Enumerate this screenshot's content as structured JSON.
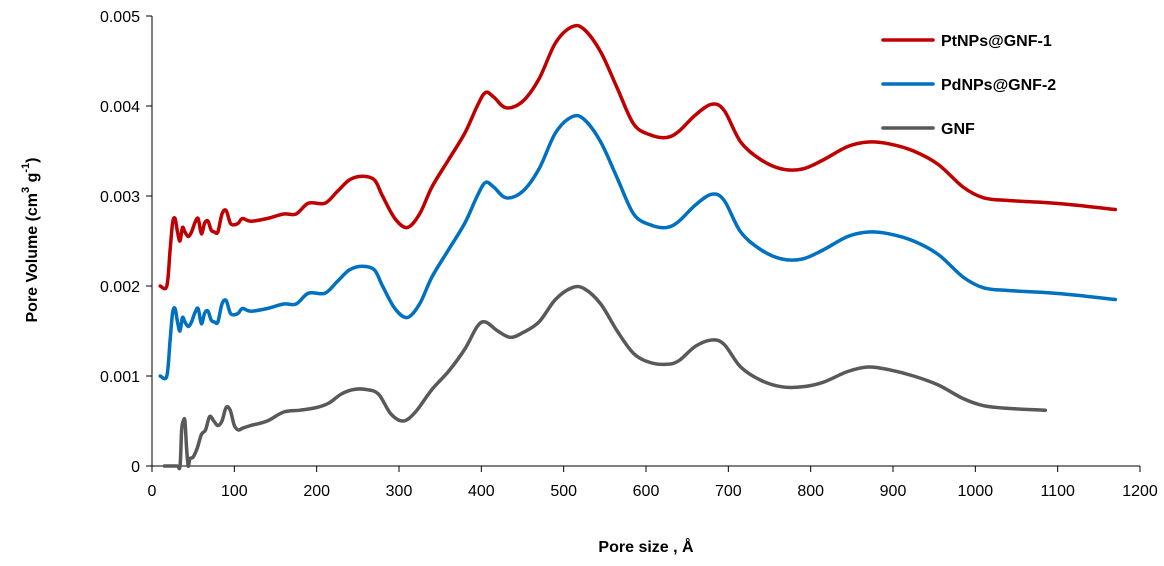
{
  "chart_data": {
    "type": "line",
    "title": "",
    "xlabel": "Pore size , Å",
    "ylabel_parts": [
      "Pore Volume (cm",
      "3",
      " g",
      "-1",
      ")"
    ],
    "xlim": [
      0,
      1200
    ],
    "ylim": [
      0,
      0.005
    ],
    "x_ticks": [
      0,
      100,
      200,
      300,
      400,
      500,
      600,
      700,
      800,
      900,
      1000,
      1100,
      1200
    ],
    "y_ticks": [
      0,
      0.001,
      0.002,
      0.003,
      0.004,
      0.005
    ],
    "y_tick_labels": [
      "0",
      "0.001",
      "0.002",
      "0.003",
      "0.004",
      "0.005"
    ],
    "grid": false,
    "legend_position": "top-right",
    "series": [
      {
        "name": "PtNPs@GNF-1",
        "color": "#C00000",
        "points": [
          [
            10,
            0.002
          ],
          [
            18,
            0.002
          ],
          [
            22,
            0.0024
          ],
          [
            25,
            0.0027
          ],
          [
            28,
            0.00275
          ],
          [
            31,
            0.0026
          ],
          [
            34,
            0.0025
          ],
          [
            37,
            0.00265
          ],
          [
            40,
            0.0026
          ],
          [
            44,
            0.00255
          ],
          [
            48,
            0.0026
          ],
          [
            52,
            0.0027
          ],
          [
            56,
            0.00275
          ],
          [
            60,
            0.00258
          ],
          [
            64,
            0.0027
          ],
          [
            68,
            0.00272
          ],
          [
            72,
            0.00262
          ],
          [
            76,
            0.0026
          ],
          [
            80,
            0.0026
          ],
          [
            85,
            0.0028
          ],
          [
            90,
            0.00284
          ],
          [
            95,
            0.0027
          ],
          [
            100,
            0.00268
          ],
          [
            105,
            0.0027
          ],
          [
            110,
            0.00275
          ],
          [
            120,
            0.00272
          ],
          [
            140,
            0.00275
          ],
          [
            160,
            0.0028
          ],
          [
            175,
            0.0028
          ],
          [
            190,
            0.00292
          ],
          [
            210,
            0.00292
          ],
          [
            225,
            0.00305
          ],
          [
            240,
            0.00318
          ],
          [
            255,
            0.00322
          ],
          [
            270,
            0.00318
          ],
          [
            280,
            0.003
          ],
          [
            295,
            0.00275
          ],
          [
            310,
            0.00265
          ],
          [
            325,
            0.0028
          ],
          [
            340,
            0.0031
          ],
          [
            360,
            0.0034
          ],
          [
            380,
            0.0037
          ],
          [
            395,
            0.004
          ],
          [
            405,
            0.00415
          ],
          [
            415,
            0.0041
          ],
          [
            430,
            0.00398
          ],
          [
            450,
            0.00405
          ],
          [
            470,
            0.0043
          ],
          [
            490,
            0.0047
          ],
          [
            510,
            0.00488
          ],
          [
            525,
            0.00485
          ],
          [
            545,
            0.0046
          ],
          [
            565,
            0.0042
          ],
          [
            585,
            0.0038
          ],
          [
            605,
            0.00368
          ],
          [
            625,
            0.00365
          ],
          [
            640,
            0.00372
          ],
          [
            660,
            0.0039
          ],
          [
            680,
            0.00402
          ],
          [
            695,
            0.00395
          ],
          [
            715,
            0.0036
          ],
          [
            740,
            0.0034
          ],
          [
            765,
            0.0033
          ],
          [
            790,
            0.0033
          ],
          [
            815,
            0.0034
          ],
          [
            845,
            0.00355
          ],
          [
            870,
            0.0036
          ],
          [
            895,
            0.00358
          ],
          [
            925,
            0.0035
          ],
          [
            955,
            0.00335
          ],
          [
            985,
            0.0031
          ],
          [
            1010,
            0.00298
          ],
          [
            1040,
            0.00295
          ],
          [
            1080,
            0.00293
          ],
          [
            1120,
            0.0029
          ],
          [
            1170,
            0.00285
          ]
        ]
      },
      {
        "name": "PdNPs@GNF-2",
        "color": "#0070C0",
        "points": [
          [
            10,
            0.001
          ],
          [
            18,
            0.001
          ],
          [
            22,
            0.0014
          ],
          [
            25,
            0.0017
          ],
          [
            28,
            0.00175
          ],
          [
            31,
            0.0016
          ],
          [
            34,
            0.0015
          ],
          [
            37,
            0.00165
          ],
          [
            40,
            0.0016
          ],
          [
            44,
            0.00155
          ],
          [
            48,
            0.0016
          ],
          [
            52,
            0.0017
          ],
          [
            56,
            0.00175
          ],
          [
            60,
            0.00158
          ],
          [
            64,
            0.0017
          ],
          [
            68,
            0.00172
          ],
          [
            72,
            0.00162
          ],
          [
            76,
            0.0016
          ],
          [
            80,
            0.0016
          ],
          [
            85,
            0.0018
          ],
          [
            90,
            0.00184
          ],
          [
            95,
            0.0017
          ],
          [
            100,
            0.00168
          ],
          [
            105,
            0.0017
          ],
          [
            110,
            0.00175
          ],
          [
            120,
            0.00172
          ],
          [
            140,
            0.00175
          ],
          [
            160,
            0.0018
          ],
          [
            175,
            0.0018
          ],
          [
            190,
            0.00192
          ],
          [
            210,
            0.00192
          ],
          [
            225,
            0.00205
          ],
          [
            240,
            0.00218
          ],
          [
            255,
            0.00222
          ],
          [
            270,
            0.00218
          ],
          [
            280,
            0.002
          ],
          [
            295,
            0.00175
          ],
          [
            310,
            0.00165
          ],
          [
            325,
            0.0018
          ],
          [
            340,
            0.0021
          ],
          [
            360,
            0.0024
          ],
          [
            380,
            0.0027
          ],
          [
            395,
            0.003
          ],
          [
            405,
            0.00315
          ],
          [
            415,
            0.0031
          ],
          [
            430,
            0.00298
          ],
          [
            450,
            0.00305
          ],
          [
            470,
            0.0033
          ],
          [
            490,
            0.0037
          ],
          [
            510,
            0.00388
          ],
          [
            525,
            0.00385
          ],
          [
            545,
            0.0036
          ],
          [
            565,
            0.0032
          ],
          [
            585,
            0.0028
          ],
          [
            605,
            0.00268
          ],
          [
            625,
            0.00265
          ],
          [
            640,
            0.00272
          ],
          [
            660,
            0.0029
          ],
          [
            680,
            0.00302
          ],
          [
            695,
            0.00295
          ],
          [
            715,
            0.0026
          ],
          [
            740,
            0.0024
          ],
          [
            765,
            0.0023
          ],
          [
            790,
            0.0023
          ],
          [
            815,
            0.0024
          ],
          [
            845,
            0.00255
          ],
          [
            870,
            0.0026
          ],
          [
            895,
            0.00258
          ],
          [
            925,
            0.0025
          ],
          [
            955,
            0.00235
          ],
          [
            985,
            0.0021
          ],
          [
            1010,
            0.00198
          ],
          [
            1040,
            0.00195
          ],
          [
            1080,
            0.00193
          ],
          [
            1120,
            0.0019
          ],
          [
            1170,
            0.00185
          ]
        ]
      },
      {
        "name": "GNF",
        "color": "#595959",
        "points": [
          [
            15,
            0
          ],
          [
            30,
            0
          ],
          [
            34,
            0
          ],
          [
            36,
            0.0004
          ],
          [
            38,
            0.0005
          ],
          [
            40,
            0.0005
          ],
          [
            42,
            0.0002
          ],
          [
            44,
            0
          ],
          [
            46,
            8e-05
          ],
          [
            50,
            0.0001
          ],
          [
            55,
            0.0002
          ],
          [
            60,
            0.00035
          ],
          [
            65,
            0.0004
          ],
          [
            70,
            0.00055
          ],
          [
            75,
            0.0005
          ],
          [
            80,
            0.00045
          ],
          [
            85,
            0.0005
          ],
          [
            90,
            0.00065
          ],
          [
            95,
            0.00062
          ],
          [
            100,
            0.00045
          ],
          [
            105,
            0.0004
          ],
          [
            110,
            0.00042
          ],
          [
            120,
            0.00045
          ],
          [
            140,
            0.0005
          ],
          [
            160,
            0.0006
          ],
          [
            180,
            0.00062
          ],
          [
            200,
            0.00065
          ],
          [
            215,
            0.0007
          ],
          [
            230,
            0.0008
          ],
          [
            245,
            0.00085
          ],
          [
            260,
            0.00085
          ],
          [
            275,
            0.0008
          ],
          [
            290,
            0.00058
          ],
          [
            305,
            0.0005
          ],
          [
            320,
            0.0006
          ],
          [
            340,
            0.00085
          ],
          [
            360,
            0.00105
          ],
          [
            380,
            0.0013
          ],
          [
            395,
            0.00155
          ],
          [
            405,
            0.0016
          ],
          [
            420,
            0.0015
          ],
          [
            435,
            0.00143
          ],
          [
            450,
            0.00148
          ],
          [
            470,
            0.0016
          ],
          [
            490,
            0.00185
          ],
          [
            510,
            0.00198
          ],
          [
            525,
            0.00197
          ],
          [
            545,
            0.0018
          ],
          [
            565,
            0.0015
          ],
          [
            585,
            0.00125
          ],
          [
            605,
            0.00115
          ],
          [
            625,
            0.00113
          ],
          [
            640,
            0.00117
          ],
          [
            660,
            0.00133
          ],
          [
            680,
            0.0014
          ],
          [
            695,
            0.00135
          ],
          [
            715,
            0.0011
          ],
          [
            740,
            0.00095
          ],
          [
            765,
            0.00088
          ],
          [
            790,
            0.00088
          ],
          [
            815,
            0.00093
          ],
          [
            845,
            0.00105
          ],
          [
            870,
            0.0011
          ],
          [
            895,
            0.00107
          ],
          [
            925,
            0.001
          ],
          [
            955,
            0.0009
          ],
          [
            985,
            0.00075
          ],
          [
            1010,
            0.00067
          ],
          [
            1040,
            0.00064
          ],
          [
            1085,
            0.00062
          ]
        ]
      }
    ]
  }
}
